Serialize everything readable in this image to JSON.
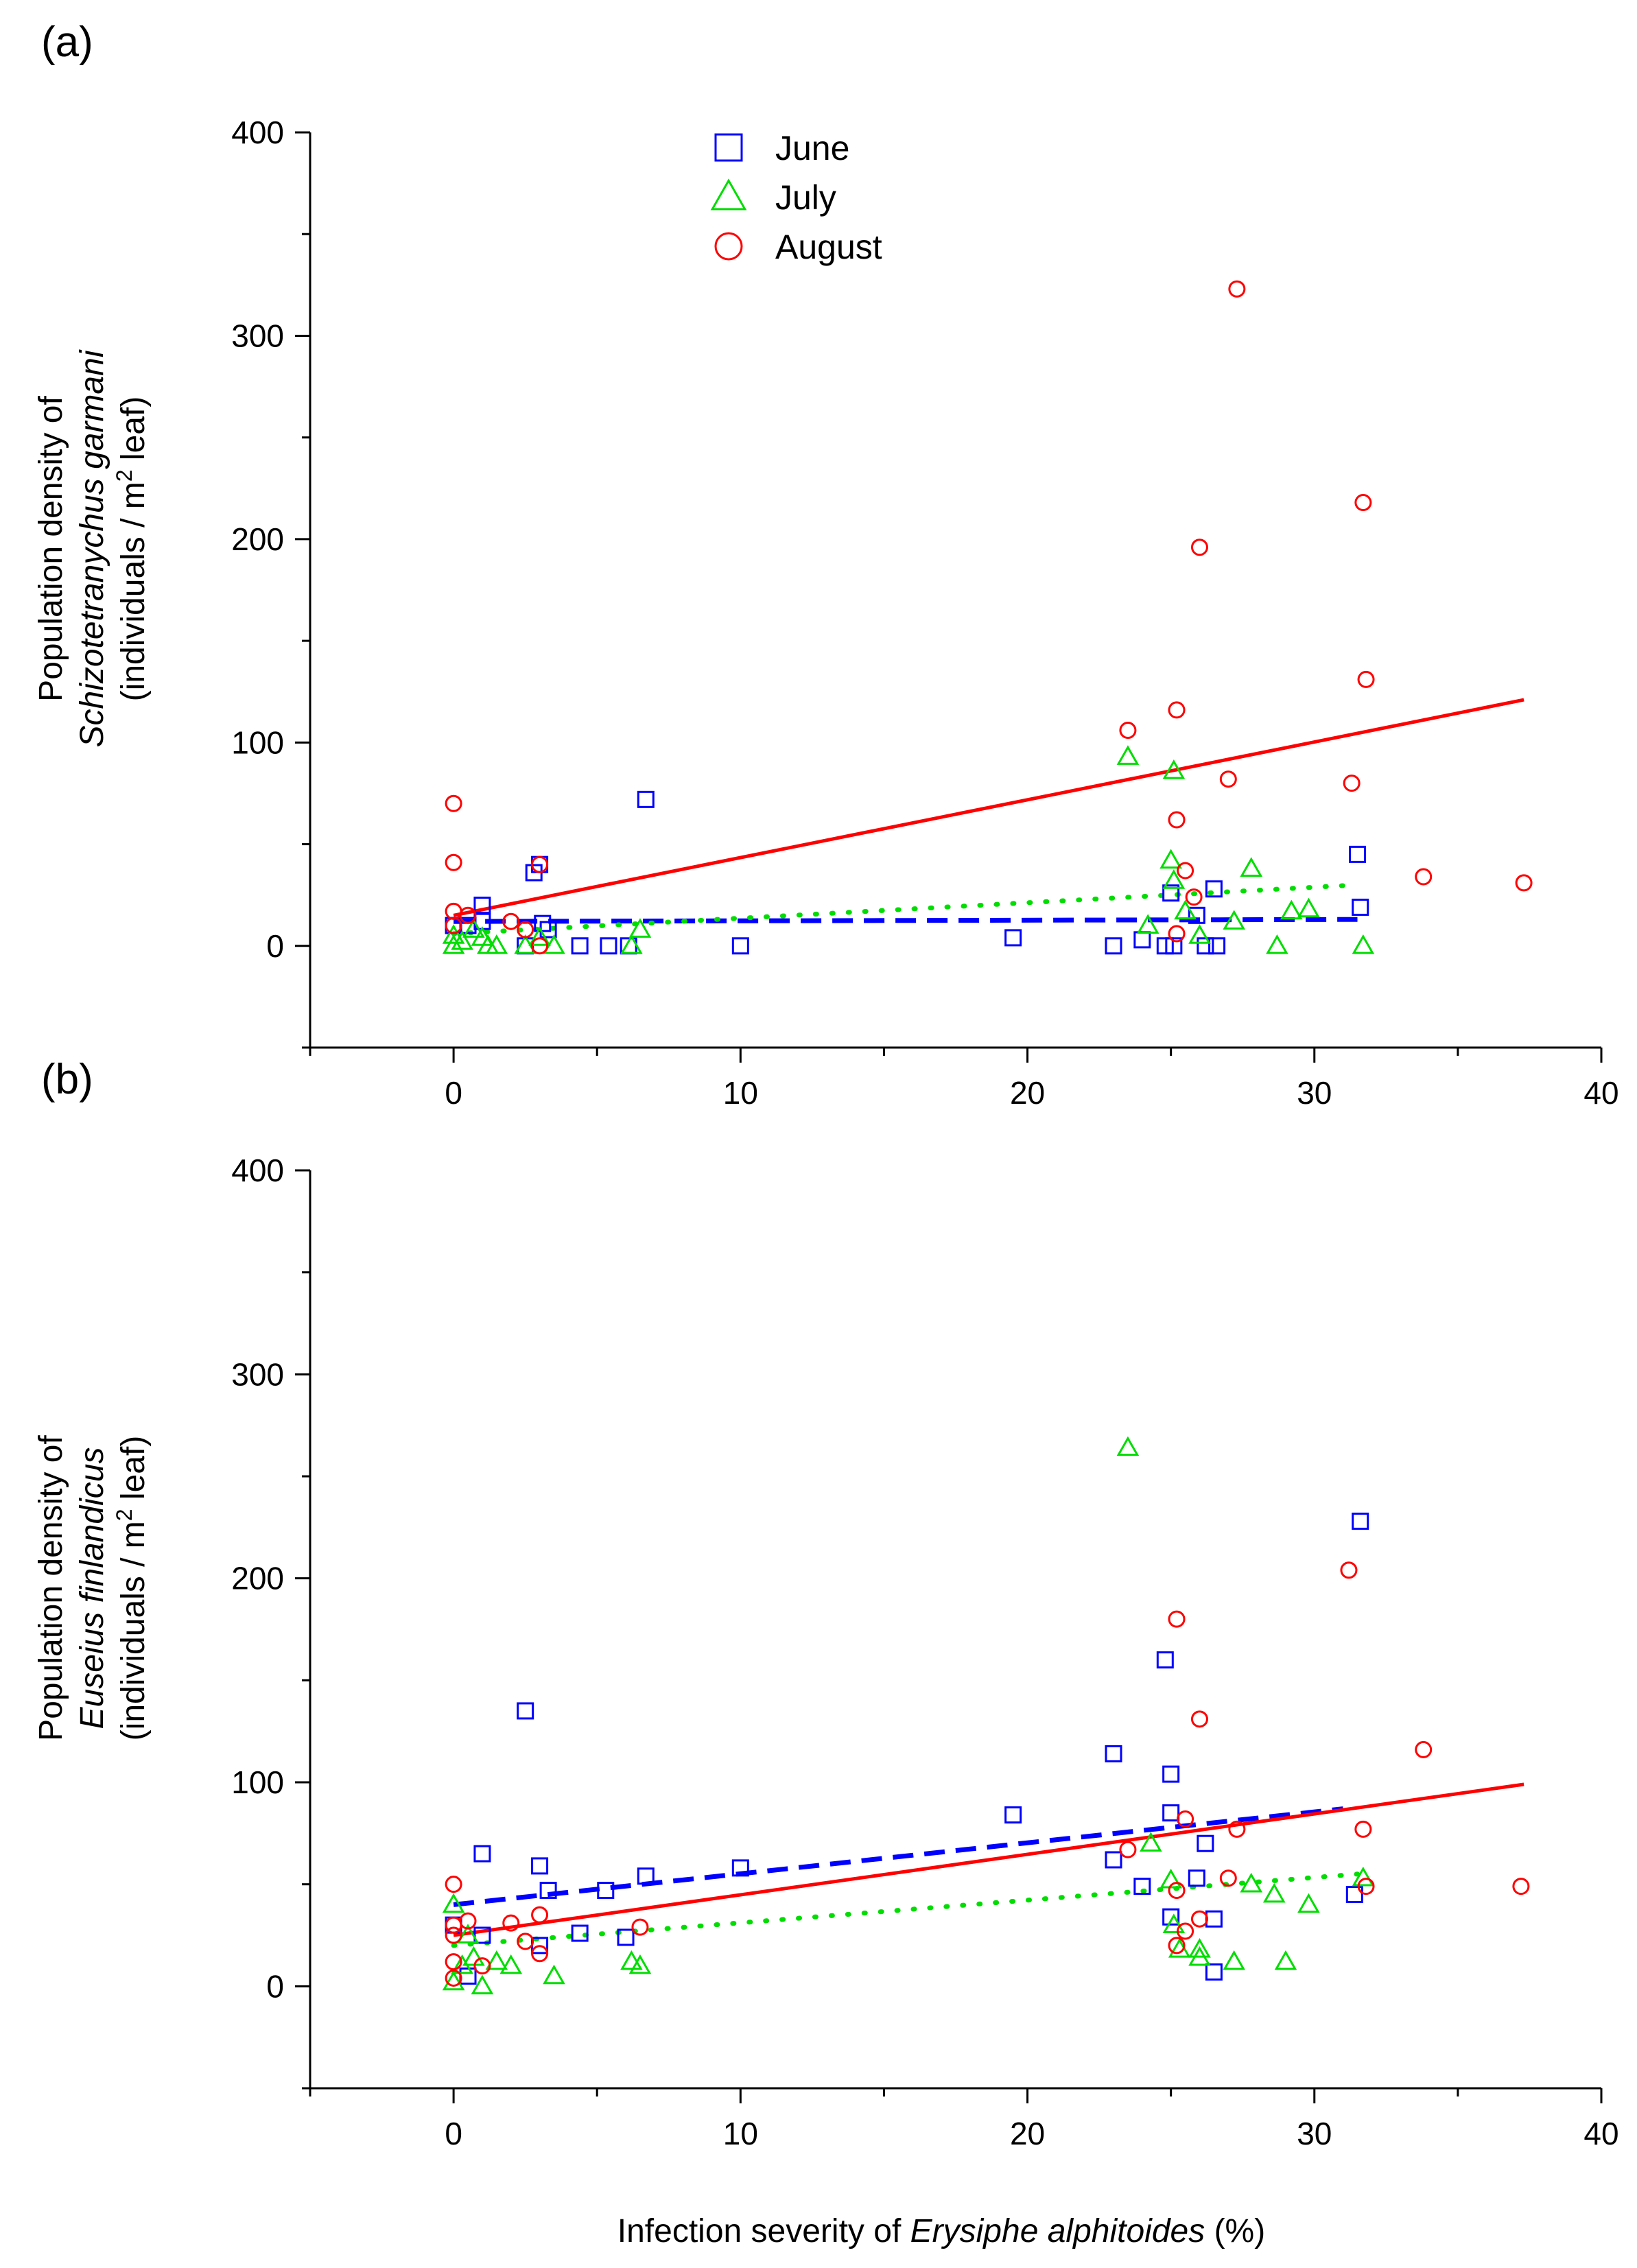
{
  "figure": {
    "x_axis_title_prefix": "Infection severity of ",
    "x_axis_title_italic": "Erysiphe alphitoides",
    "x_axis_title_suffix": " (%)"
  },
  "legend": [
    {
      "label": "June",
      "marker": "square",
      "color": "#0000ff"
    },
    {
      "label": "July",
      "marker": "triangle",
      "color": "#00dd00"
    },
    {
      "label": "August",
      "marker": "circle",
      "color": "#ff0000"
    }
  ],
  "colors": {
    "june": "#0000ff",
    "july": "#00dd00",
    "august": "#ff0000"
  },
  "chart_data": [
    {
      "type": "scatter",
      "panel_label": "(a)",
      "ylabel_line1": "Population density of",
      "ylabel_line2_italic": "Schizotetranychus garmani",
      "ylabel_line3_prefix": "(individuals / m",
      "ylabel_line3_sup": "2",
      "ylabel_line3_suffix": " leaf)",
      "xlim": [
        -5,
        40
      ],
      "ylim": [
        -50,
        400
      ],
      "xticks": [
        0,
        10,
        20,
        30,
        40
      ],
      "yticks": [
        0,
        100,
        200,
        300,
        400
      ],
      "series": [
        {
          "name": "June",
          "marker": "square",
          "points": [
            [
              0,
              10
            ],
            [
              0.5,
              10
            ],
            [
              1,
              20
            ],
            [
              1,
              12
            ],
            [
              2.5,
              0
            ],
            [
              2.8,
              36
            ],
            [
              3,
              40
            ],
            [
              3.1,
              11
            ],
            [
              3.3,
              8
            ],
            [
              4.4,
              0
            ],
            [
              5.4,
              0
            ],
            [
              6.1,
              0
            ],
            [
              6.7,
              72
            ],
            [
              10,
              0
            ],
            [
              19.5,
              4
            ],
            [
              23,
              0
            ],
            [
              24,
              3
            ],
            [
              24.8,
              0
            ],
            [
              25,
              26
            ],
            [
              25.1,
              0
            ],
            [
              25.9,
              15
            ],
            [
              26.2,
              0
            ],
            [
              26.5,
              28
            ],
            [
              26.6,
              0
            ],
            [
              31.5,
              45
            ],
            [
              31.6,
              19
            ]
          ]
        },
        {
          "name": "July",
          "marker": "triangle",
          "points": [
            [
              0,
              0
            ],
            [
              0,
              5
            ],
            [
              0.3,
              2
            ],
            [
              0.7,
              8
            ],
            [
              1.0,
              4
            ],
            [
              1.2,
              0
            ],
            [
              1.5,
              0
            ],
            [
              2.5,
              0
            ],
            [
              3.0,
              4
            ],
            [
              3.5,
              0
            ],
            [
              6.2,
              0
            ],
            [
              6.5,
              8
            ],
            [
              23.5,
              93
            ],
            [
              24.2,
              10
            ],
            [
              25,
              42
            ],
            [
              25.1,
              32
            ],
            [
              25.1,
              86
            ],
            [
              25.5,
              17
            ],
            [
              26,
              5
            ],
            [
              27.2,
              12
            ],
            [
              27.8,
              38
            ],
            [
              28.7,
              0
            ],
            [
              29.2,
              17
            ],
            [
              29.8,
              18
            ],
            [
              31.7,
              0
            ]
          ]
        },
        {
          "name": "August",
          "marker": "circle",
          "points": [
            [
              0,
              70
            ],
            [
              0,
              41
            ],
            [
              0,
              17
            ],
            [
              0,
              10
            ],
            [
              0.5,
              15
            ],
            [
              2,
              12
            ],
            [
              2.5,
              8
            ],
            [
              3,
              40
            ],
            [
              3,
              0
            ],
            [
              23.5,
              106
            ],
            [
              25.2,
              116
            ],
            [
              25.2,
              62
            ],
            [
              25.2,
              6
            ],
            [
              25.5,
              37
            ],
            [
              25.8,
              24
            ],
            [
              26,
              196
            ],
            [
              27,
              82
            ],
            [
              27.3,
              323
            ],
            [
              31.3,
              80
            ],
            [
              31.7,
              218
            ],
            [
              31.8,
              131
            ],
            [
              33.8,
              34
            ],
            [
              37.3,
              31
            ]
          ]
        }
      ],
      "fits": [
        {
          "name": "June",
          "style": "dashed",
          "x": [
            0,
            31.5
          ],
          "y": [
            12,
            13
          ]
        },
        {
          "name": "July",
          "style": "dotted",
          "x": [
            0,
            31.5
          ],
          "y": [
            6,
            30
          ]
        },
        {
          "name": "August",
          "style": "solid",
          "x": [
            0,
            37.3
          ],
          "y": [
            15,
            121
          ]
        }
      ]
    },
    {
      "type": "scatter",
      "panel_label": "(b)",
      "ylabel_line1": "Population density of",
      "ylabel_line2_italic": "Euseius finlandicus",
      "ylabel_line3_prefix": "(individuals / m",
      "ylabel_line3_sup": "2",
      "ylabel_line3_suffix": " leaf)",
      "xlim": [
        -5,
        40
      ],
      "ylim": [
        -50,
        400
      ],
      "xticks": [
        0,
        10,
        20,
        30,
        40
      ],
      "yticks": [
        0,
        100,
        200,
        300,
        400
      ],
      "series": [
        {
          "name": "June",
          "marker": "square",
          "points": [
            [
              0,
              30
            ],
            [
              0.5,
              5
            ],
            [
              1,
              65
            ],
            [
              1,
              25
            ],
            [
              2.5,
              135
            ],
            [
              3,
              59
            ],
            [
              3,
              20
            ],
            [
              3.3,
              47
            ],
            [
              4.4,
              26
            ],
            [
              5.3,
              47
            ],
            [
              6,
              24
            ],
            [
              6.7,
              54
            ],
            [
              10,
              58
            ],
            [
              19.5,
              84
            ],
            [
              23,
              114
            ],
            [
              23,
              62
            ],
            [
              24,
              49
            ],
            [
              24.8,
              160
            ],
            [
              25,
              104
            ],
            [
              25,
              85
            ],
            [
              25,
              34
            ],
            [
              25.9,
              53
            ],
            [
              26.2,
              70
            ],
            [
              26.5,
              33
            ],
            [
              26.5,
              7
            ],
            [
              31.4,
              45
            ],
            [
              31.6,
              228
            ]
          ]
        },
        {
          "name": "July",
          "marker": "triangle",
          "points": [
            [
              0,
              40
            ],
            [
              0,
              2
            ],
            [
              0.3,
              10
            ],
            [
              0.5,
              25
            ],
            [
              0.7,
              14
            ],
            [
              1,
              0
            ],
            [
              1.5,
              12
            ],
            [
              2,
              10
            ],
            [
              3.5,
              5
            ],
            [
              6.2,
              12
            ],
            [
              6.5,
              10
            ],
            [
              23.5,
              264
            ],
            [
              24.3,
              70
            ],
            [
              25,
              52
            ],
            [
              25.1,
              30
            ],
            [
              25.3,
              18
            ],
            [
              26,
              18
            ],
            [
              26,
              14
            ],
            [
              27.2,
              12
            ],
            [
              27.8,
              50
            ],
            [
              28.6,
              45
            ],
            [
              29,
              12
            ],
            [
              29.8,
              40
            ],
            [
              31.7,
              53
            ]
          ]
        },
        {
          "name": "August",
          "marker": "circle",
          "points": [
            [
              0,
              50
            ],
            [
              0,
              30
            ],
            [
              0,
              25
            ],
            [
              0,
              12
            ],
            [
              0,
              4
            ],
            [
              0.5,
              32
            ],
            [
              1,
              10
            ],
            [
              2,
              31
            ],
            [
              2.5,
              22
            ],
            [
              3,
              35
            ],
            [
              3,
              16
            ],
            [
              6.5,
              29
            ],
            [
              23.5,
              67
            ],
            [
              25.2,
              180
            ],
            [
              25.2,
              47
            ],
            [
              25.2,
              20
            ],
            [
              25.5,
              27
            ],
            [
              25.5,
              82
            ],
            [
              26,
              131
            ],
            [
              26,
              33
            ],
            [
              27,
              53
            ],
            [
              27.3,
              77
            ],
            [
              31.2,
              204
            ],
            [
              31.7,
              77
            ],
            [
              31.8,
              49
            ],
            [
              33.8,
              116
            ],
            [
              37.2,
              49
            ]
          ]
        }
      ],
      "fits": [
        {
          "name": "June",
          "style": "dashed",
          "x": [
            0,
            31
          ],
          "y": [
            40,
            87
          ]
        },
        {
          "name": "July",
          "style": "dotted",
          "x": [
            0,
            31.5
          ],
          "y": [
            20,
            55
          ]
        },
        {
          "name": "August",
          "style": "solid",
          "x": [
            0,
            37.3
          ],
          "y": [
            25,
            99
          ]
        }
      ]
    }
  ]
}
